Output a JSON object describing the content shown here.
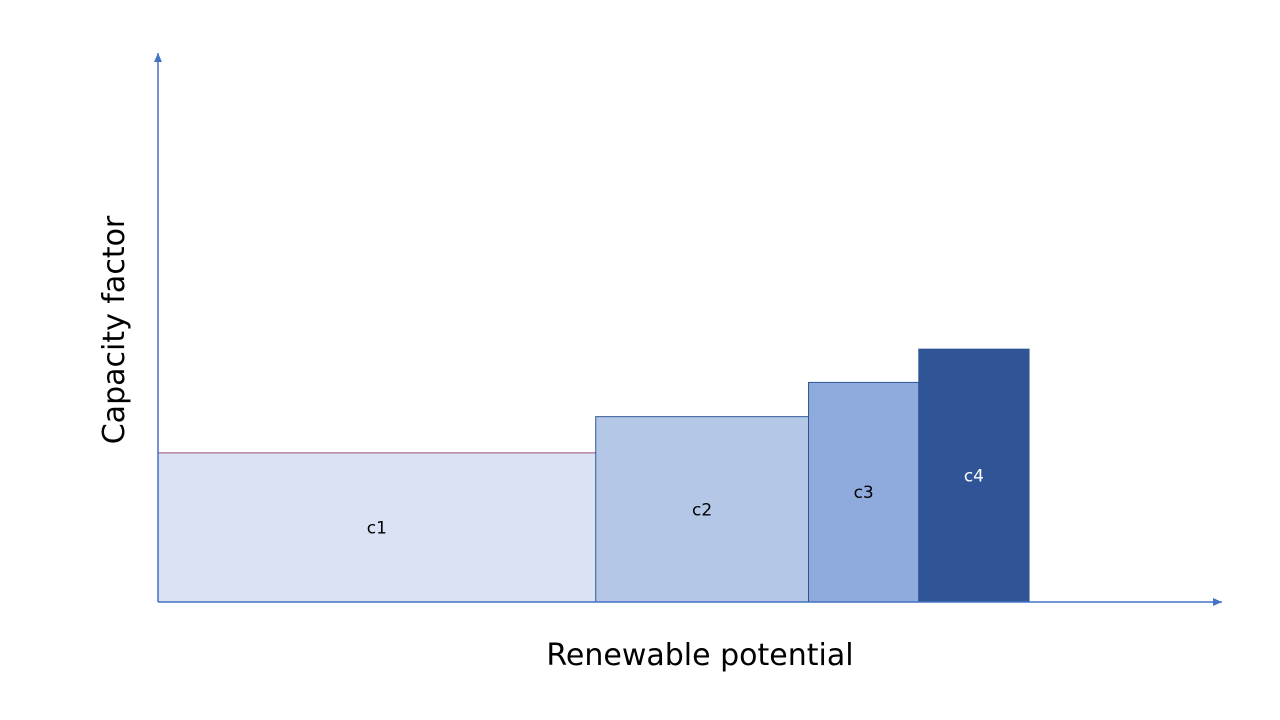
{
  "diagram": {
    "xlabel": "Renewable potential",
    "ylabel": "Capacity factor",
    "colors": {
      "axis": "#4472C4",
      "c1_fill": "#DAE3F3",
      "c1_top_edge": "#9E4A7E",
      "c2_fill": "#B4C7E7",
      "c3_fill": "#8FAADC",
      "c4_fill": "#2F5597",
      "bar_edge": "#2F5597"
    },
    "blocks": [
      {
        "label": "c1",
        "potential": 3.97,
        "capacity_factor": 1.48,
        "fill": "#DAE3F3",
        "text_color": "#000000"
      },
      {
        "label": "c2",
        "potential": 1.93,
        "capacity_factor": 1.84,
        "fill": "#B4C7E7",
        "text_color": "#000000"
      },
      {
        "label": "c3",
        "potential": 1.0,
        "capacity_factor": 2.18,
        "fill": "#8FAADC",
        "text_color": "#000000"
      },
      {
        "label": "c4",
        "potential": 1.0,
        "capacity_factor": 2.51,
        "fill": "#2F5597",
        "text_color": "#FFFFFF"
      }
    ],
    "x_extent": 9.65,
    "y_extent": 5.45
  }
}
